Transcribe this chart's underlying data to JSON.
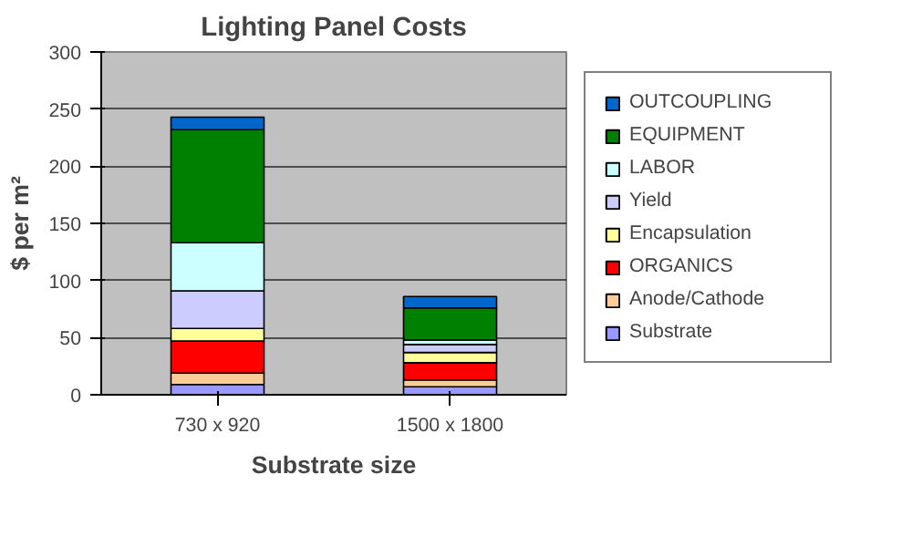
{
  "chart_data": {
    "type": "bar",
    "title": "Lighting Panel Costs",
    "xlabel": "Substrate size",
    "ylabel": "$ per m²",
    "categories": [
      "730 x 920",
      "1500 x 1800"
    ],
    "stacked": true,
    "ylim": [
      0,
      300
    ],
    "yticks": [
      0,
      50,
      100,
      150,
      200,
      250,
      300
    ],
    "grid": "y",
    "legend": "right",
    "series": [
      {
        "name": "Substrate",
        "color": "#9999ff",
        "values": [
          9,
          7
        ]
      },
      {
        "name": "Anode/Cathode",
        "color": "#ffcc99",
        "values": [
          10,
          6
        ]
      },
      {
        "name": "ORGANICS",
        "color": "#ff0000",
        "values": [
          28,
          15
        ]
      },
      {
        "name": "Encapsulation",
        "color": "#ffff99",
        "values": [
          11,
          9
        ]
      },
      {
        "name": "Yield",
        "color": "#ccccff",
        "values": [
          33,
          7
        ]
      },
      {
        "name": "LABOR",
        "color": "#ccffff",
        "values": [
          42,
          4
        ]
      },
      {
        "name": "EQUIPMENT",
        "color": "#008000",
        "values": [
          99,
          28
        ]
      },
      {
        "name": "OUTCOUPLING",
        "color": "#0066cc",
        "values": [
          11,
          10
        ]
      }
    ]
  }
}
